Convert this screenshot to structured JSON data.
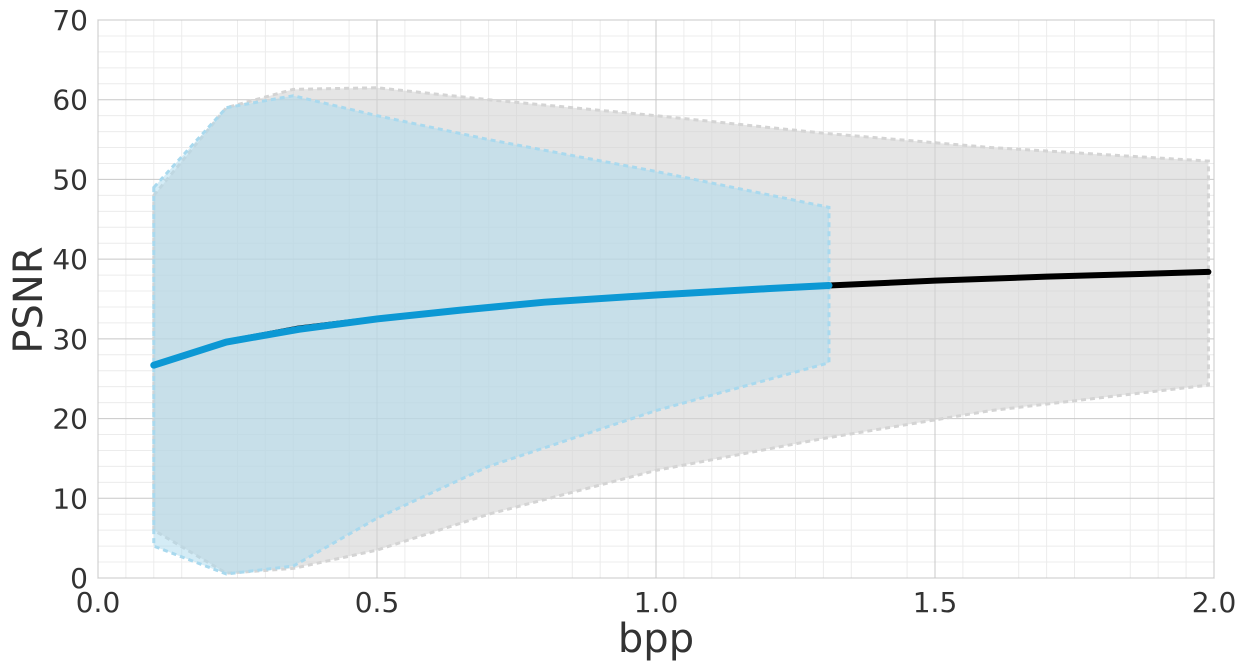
{
  "chart_data": {
    "type": "line",
    "title": "",
    "xlabel": "bpp",
    "ylabel": "PSNR",
    "xlim": [
      0.0,
      2.0
    ],
    "ylim": [
      0,
      70
    ],
    "x_ticks": [
      0.0,
      0.5,
      1.0,
      1.5,
      2.0
    ],
    "x_tick_labels": [
      "0.0",
      "0.5",
      "1.0",
      "1.5",
      "2.0"
    ],
    "y_ticks": [
      0,
      10,
      20,
      30,
      40,
      50,
      60,
      70
    ],
    "y_tick_labels": [
      "0",
      "10",
      "20",
      "30",
      "40",
      "50",
      "60",
      "70"
    ],
    "grid": true,
    "minor_grid": true,
    "legend": "none",
    "series": [
      {
        "color": "#000000",
        "x": [
          0.1,
          0.23,
          0.36,
          0.5,
          0.65,
          0.8,
          1.0,
          1.2,
          1.31,
          1.5,
          1.7,
          1.85,
          1.99
        ],
        "y": [
          26.7,
          29.6,
          31.3,
          32.5,
          33.6,
          34.6,
          35.5,
          36.3,
          36.7,
          37.3,
          37.8,
          38.1,
          38.4
        ],
        "band": {
          "color": "#d4d4d4",
          "x": [
            0.1,
            0.23,
            0.35,
            0.5,
            0.7,
            1.0,
            1.3,
            1.6,
            1.99
          ],
          "upper": [
            48.0,
            59.0,
            61.3,
            61.5,
            60.0,
            58.0,
            55.8,
            54.0,
            52.3
          ],
          "lower": [
            6.0,
            0.6,
            1.2,
            3.5,
            8.0,
            13.5,
            17.5,
            21.0,
            24.2
          ]
        }
      },
      {
        "color": "#0c98d4",
        "x": [
          0.1,
          0.23,
          0.36,
          0.5,
          0.65,
          0.8,
          1.0,
          1.2,
          1.31
        ],
        "y": [
          26.7,
          29.6,
          31.2,
          32.5,
          33.6,
          34.6,
          35.5,
          36.3,
          36.7
        ],
        "band": {
          "color": "#a9d9ee",
          "x": [
            0.1,
            0.23,
            0.35,
            0.5,
            0.7,
            1.0,
            1.31
          ],
          "upper": [
            49.0,
            59.0,
            60.5,
            58.0,
            55.0,
            51.0,
            46.5
          ],
          "lower": [
            4.0,
            0.5,
            1.5,
            7.5,
            14.0,
            21.0,
            27.0
          ]
        }
      }
    ]
  }
}
